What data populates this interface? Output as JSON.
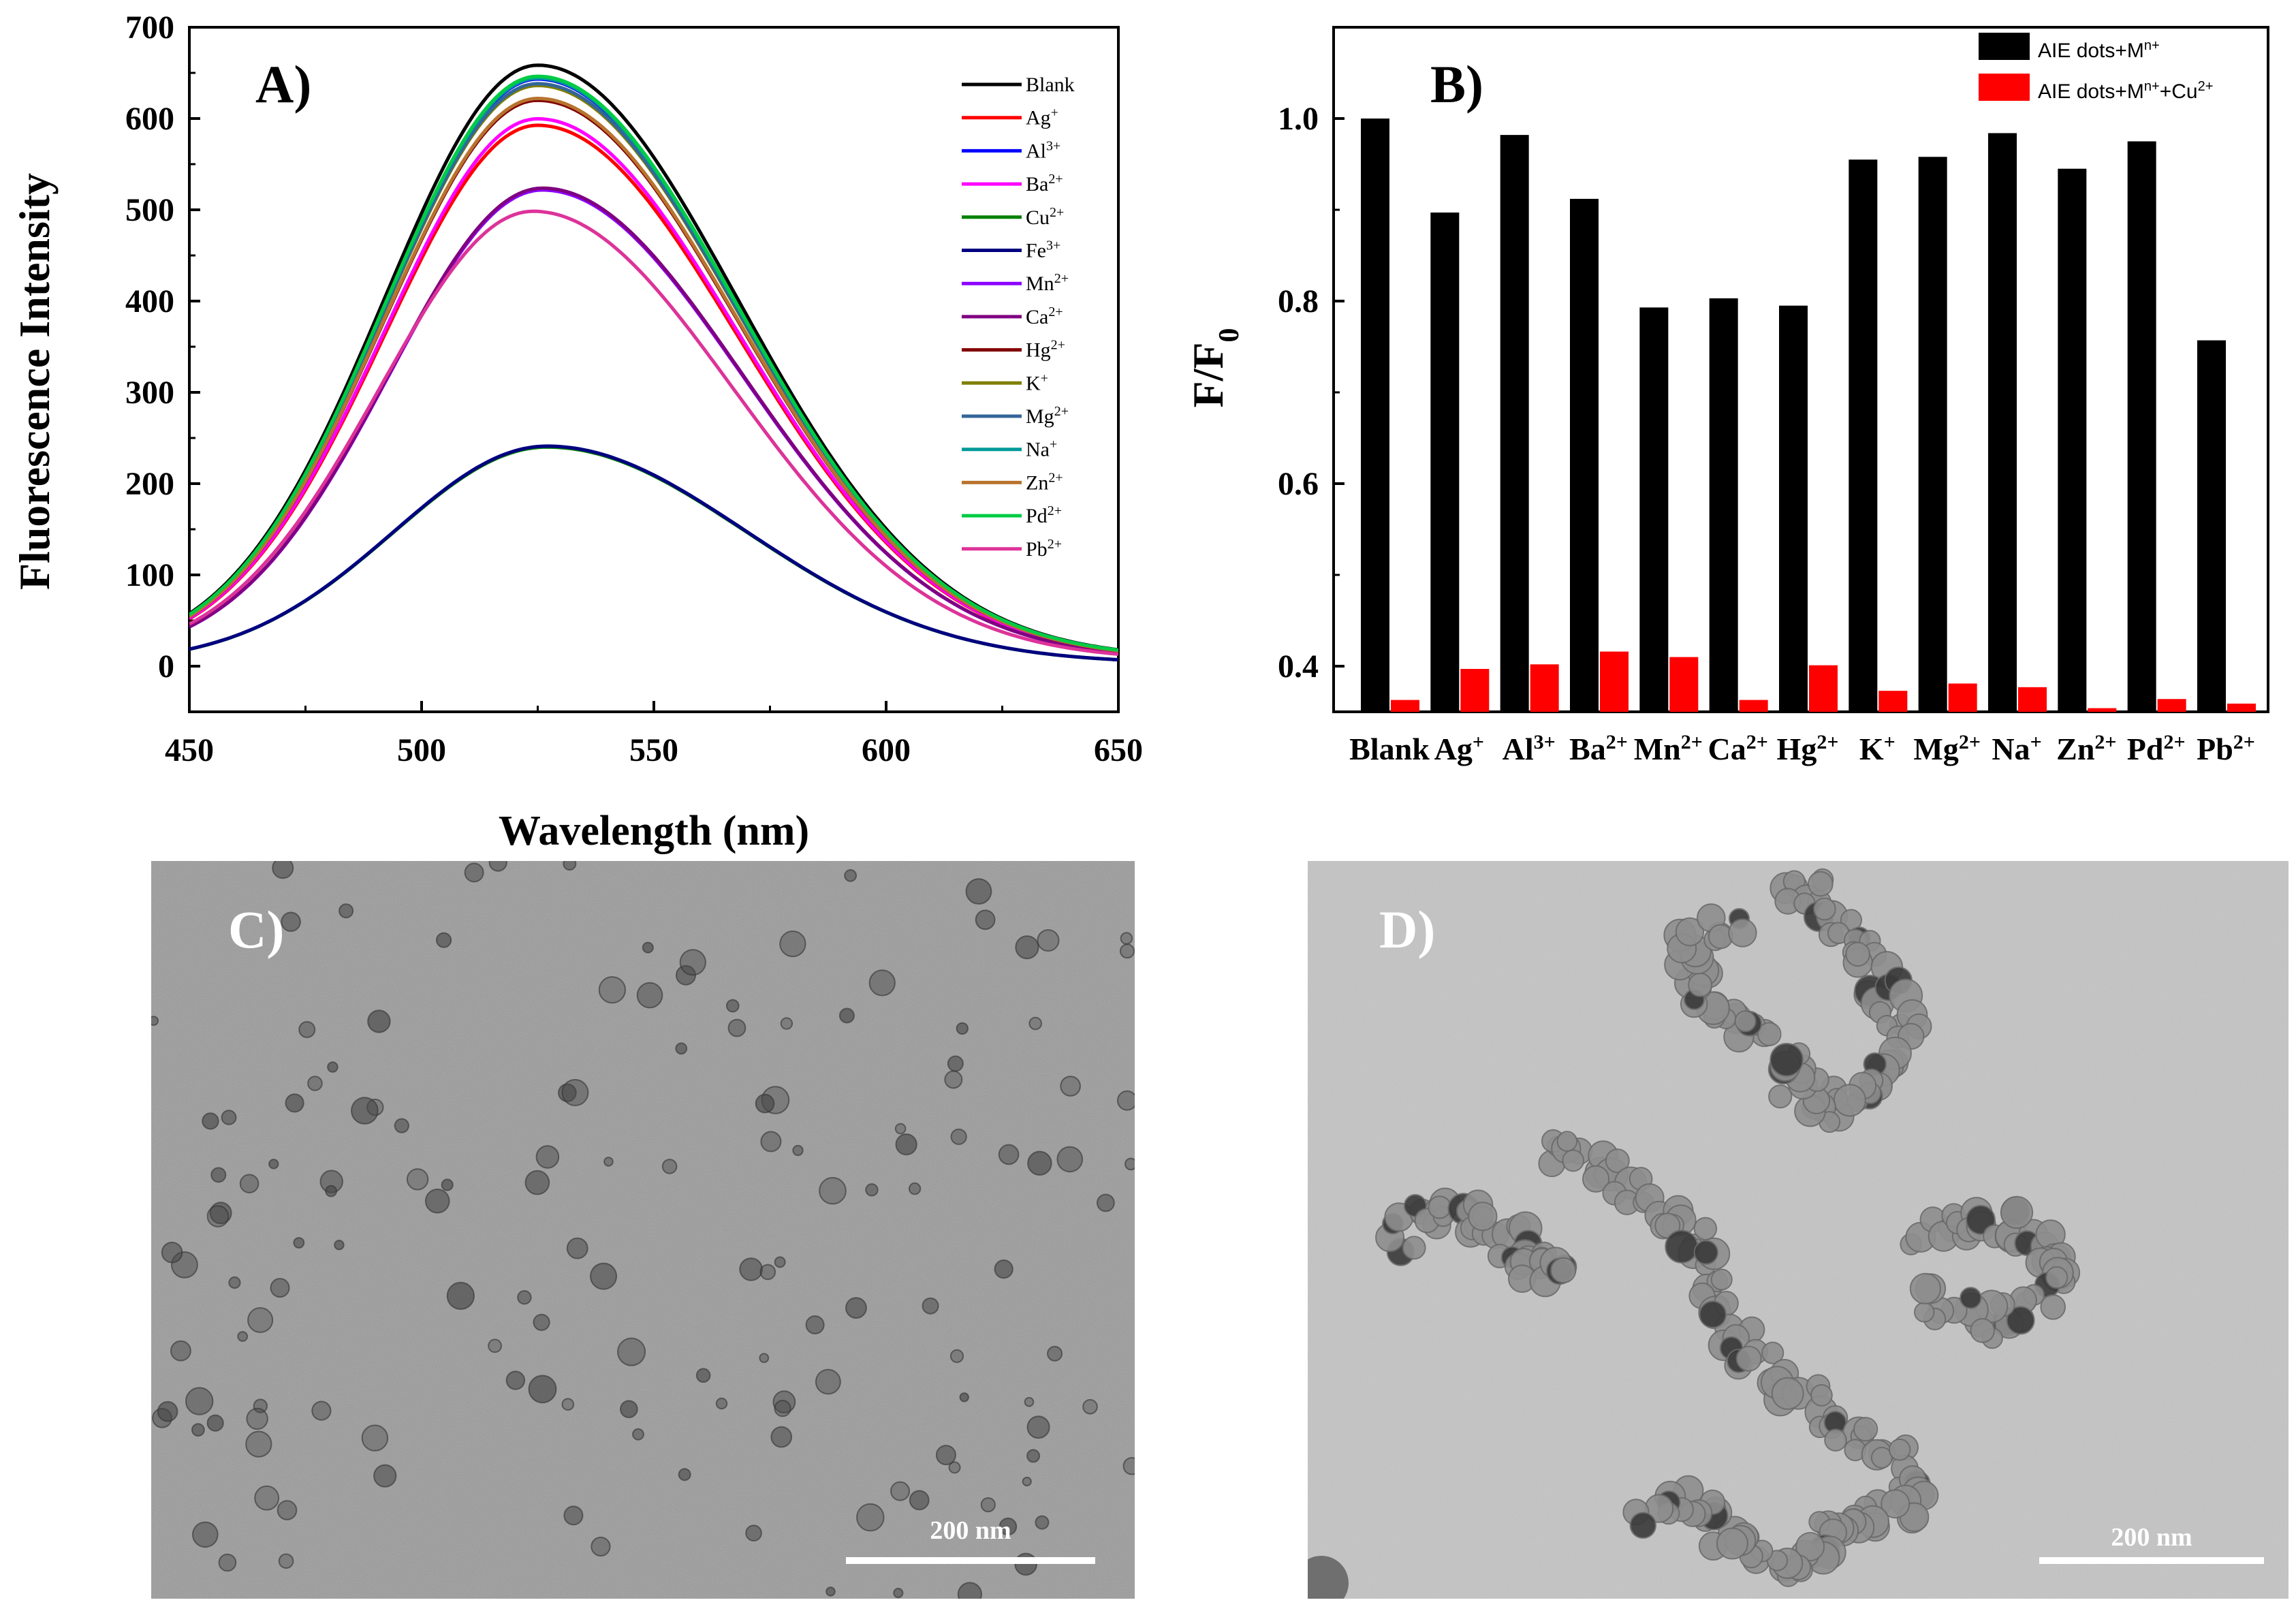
{
  "chart_data": [
    {
      "panel_label": "A)",
      "type": "line",
      "xlabel": "Wavelength (nm)",
      "ylabel": "Fluorescence Intensity",
      "xlim": [
        450,
        650
      ],
      "ylim": [
        -50,
        700
      ],
      "xticks": [
        "450",
        "500",
        "550",
        "600",
        "650"
      ],
      "yticks": [
        "0",
        "100",
        "200",
        "300",
        "400",
        "500",
        "600",
        "700"
      ],
      "legend_position": "top-right",
      "series": [
        {
          "name": "Blank",
          "color": "#000000",
          "peak_wavelength": 525,
          "peak_intensity": 650
        },
        {
          "name": "Ag<sup>+</sup>",
          "color": "#ff0000",
          "peak_wavelength": 525,
          "peak_intensity": 585
        },
        {
          "name": "Al<sup>3+</sup>",
          "color": "#0000ff",
          "peak_wavelength": 525,
          "peak_intensity": 635
        },
        {
          "name": "Ba<sup>2+</sup>",
          "color": "#ff00ff",
          "peak_wavelength": 525,
          "peak_intensity": 592
        },
        {
          "name": "Cu<sup>2+</sup>",
          "color": "#008000",
          "peak_wavelength": 527,
          "peak_intensity": 237
        },
        {
          "name": "Fe<sup>3+</sup>",
          "color": "#000080",
          "peak_wavelength": 527,
          "peak_intensity": 238
        },
        {
          "name": "Mn<sup>2+</sup>",
          "color": "#8b00ff",
          "peak_wavelength": 526,
          "peak_intensity": 515
        },
        {
          "name": "Ca<sup>2+</sup>",
          "color": "#800080",
          "peak_wavelength": 526,
          "peak_intensity": 517
        },
        {
          "name": "Hg<sup>2+</sup>",
          "color": "#800000",
          "peak_wavelength": 525,
          "peak_intensity": 612
        },
        {
          "name": "K<sup>+</sup>",
          "color": "#808000",
          "peak_wavelength": 525,
          "peak_intensity": 628
        },
        {
          "name": "Mg<sup>2+</sup>",
          "color": "#336699",
          "peak_wavelength": 525,
          "peak_intensity": 630
        },
        {
          "name": "Na<sup>+</sup>",
          "color": "#009999",
          "peak_wavelength": 525,
          "peak_intensity": 636
        },
        {
          "name": "Zn<sup>2+</sup>",
          "color": "#b8732e",
          "peak_wavelength": 525,
          "peak_intensity": 614
        },
        {
          "name": "Pd<sup>2+</sup>",
          "color": "#00cc44",
          "peak_wavelength": 525,
          "peak_intensity": 638
        },
        {
          "name": "Pb<sup>2+</sup>",
          "color": "#dd3399",
          "peak_wavelength": 524,
          "peak_intensity": 492
        }
      ]
    },
    {
      "panel_label": "B)",
      "type": "bar",
      "ylabel": "F/F<sub>0</sub>",
      "ylim": [
        0.35,
        1.1
      ],
      "yticks": [
        "0.4",
        "0.6",
        "0.8",
        "1.0"
      ],
      "categories": [
        "Blank",
        "Ag<sup>+</sup>",
        "Al<sup>3+</sup>",
        "Ba<sup>2+</sup>",
        "Mn<sup>2+</sup>",
        "Ca<sup>2+</sup>",
        "Hg<sup>2+</sup>",
        "K<sup>+</sup>",
        "Mg<sup>2+</sup>",
        "Na<sup>+</sup>",
        "Zn<sup>2+</sup>",
        "Pd<sup>2+</sup>",
        "Pb<sup>2+</sup>"
      ],
      "legend_position": "top-right",
      "series": [
        {
          "name": "AIE dots+M<sup>n+</sup>",
          "color": "#000000",
          "values": [
            1.0,
            0.897,
            0.982,
            0.912,
            0.793,
            0.803,
            0.795,
            0.955,
            0.958,
            0.984,
            0.945,
            0.975,
            0.757
          ]
        },
        {
          "name": "AIE dots+M<sup>n+</sup>+Cu<sup>2+</sup>",
          "color": "#ff0000",
          "values": [
            0.363,
            0.397,
            0.402,
            0.416,
            0.41,
            0.363,
            0.401,
            0.373,
            0.381,
            0.377,
            0.354,
            0.364,
            0.359
          ]
        }
      ]
    }
  ],
  "images": [
    {
      "panel_label": "C)",
      "scale_label": "200 nm"
    },
    {
      "panel_label": "D)",
      "scale_label": "200 nm"
    }
  ]
}
